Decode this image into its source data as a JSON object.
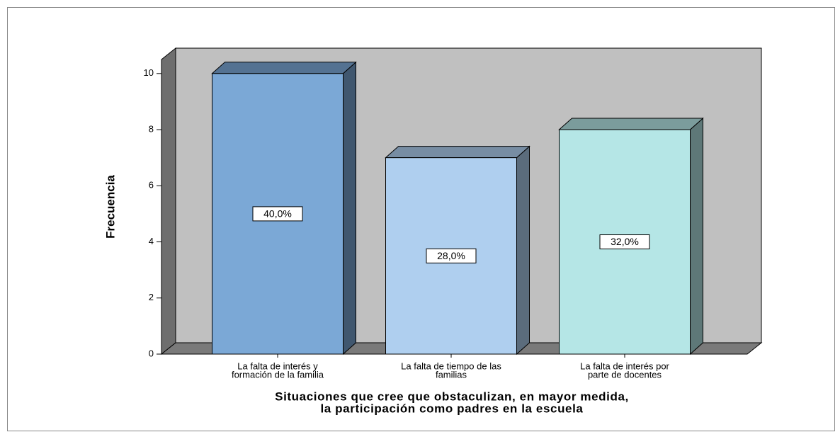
{
  "chart_data": {
    "type": "bar3d",
    "categories": [
      [
        "La falta de interés y",
        "formación de la familia"
      ],
      [
        "La falta de tiempo de las",
        "familias"
      ],
      [
        "La falta de interés por",
        "parte de docentes"
      ]
    ],
    "values": [
      10,
      7,
      8
    ],
    "percent_labels": [
      "40,0%",
      "28,0%",
      "32,0%"
    ],
    "colors": [
      "#7ba8d6",
      "#afcfef",
      "#b5e6e6"
    ],
    "ylabel": "Frecuencia",
    "xlabel": [
      "Situaciones que cree que obstaculizan, en mayor medida,",
      "la participación como padres en la escuela"
    ],
    "ylim": [
      0,
      10.5
    ],
    "yticks": [
      0,
      2,
      4,
      6,
      8,
      10
    ]
  }
}
